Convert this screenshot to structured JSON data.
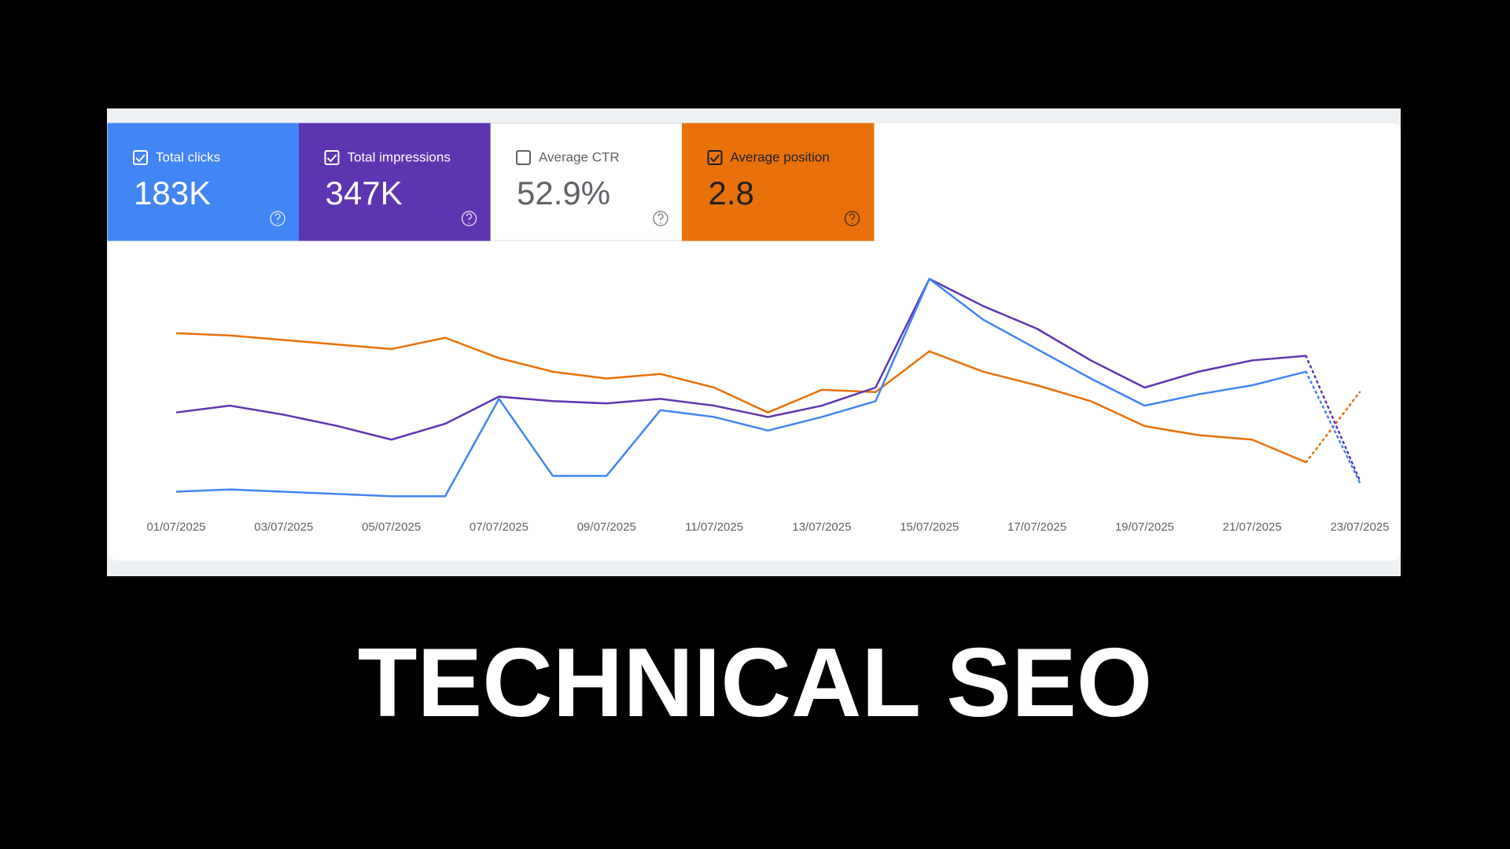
{
  "metrics": [
    {
      "label": "Total clicks",
      "value": "183K",
      "checked": true,
      "color": "#4285f4",
      "text_color": "#ffffff"
    },
    {
      "label": "Total impressions",
      "value": "347K",
      "checked": true,
      "color": "#5e35b1",
      "text_color": "#ffffff"
    },
    {
      "label": "Average CTR",
      "value": "52.9%",
      "checked": false,
      "color": "#ffffff",
      "text_color": "#5f6368"
    },
    {
      "label": "Average position",
      "value": "2.8",
      "checked": true,
      "color": "#e8710a",
      "text_color": "#202124"
    }
  ],
  "chart_data": {
    "type": "line",
    "categories": [
      "01/07/2025",
      null,
      "03/07/2025",
      null,
      "05/07/2025",
      null,
      "07/07/2025",
      null,
      "09/07/2025",
      null,
      "11/07/2025",
      null,
      "13/07/2025",
      null,
      "15/07/2025",
      null,
      "17/07/2025",
      null,
      "19/07/2025",
      null,
      "21/07/2025",
      null,
      "23/07/2025"
    ],
    "series": [
      {
        "color": "#e8710a",
        "values": [
          74,
          73,
          71,
          69,
          67,
          72,
          63,
          57,
          54,
          56,
          50,
          39,
          49,
          48,
          66,
          57,
          51,
          44,
          33,
          29,
          27,
          17,
          48
        ]
      },
      {
        "color": "#5e35b1",
        "values": [
          39,
          42,
          38,
          33,
          27,
          34,
          46,
          44,
          43,
          45,
          42,
          37,
          42,
          50,
          98,
          86,
          76,
          62,
          50,
          57,
          62,
          64,
          9
        ]
      },
      {
        "color": "#4285f4",
        "values": [
          4,
          5,
          4,
          3,
          2,
          2,
          45,
          11,
          11,
          40,
          37,
          31,
          37,
          44,
          98,
          80,
          67,
          54,
          42,
          47,
          51,
          57,
          8
        ]
      }
    ],
    "ylim": [
      0,
      100
    ],
    "dotted_last_segment": true
  },
  "caption": "TECHNICAL SEO"
}
